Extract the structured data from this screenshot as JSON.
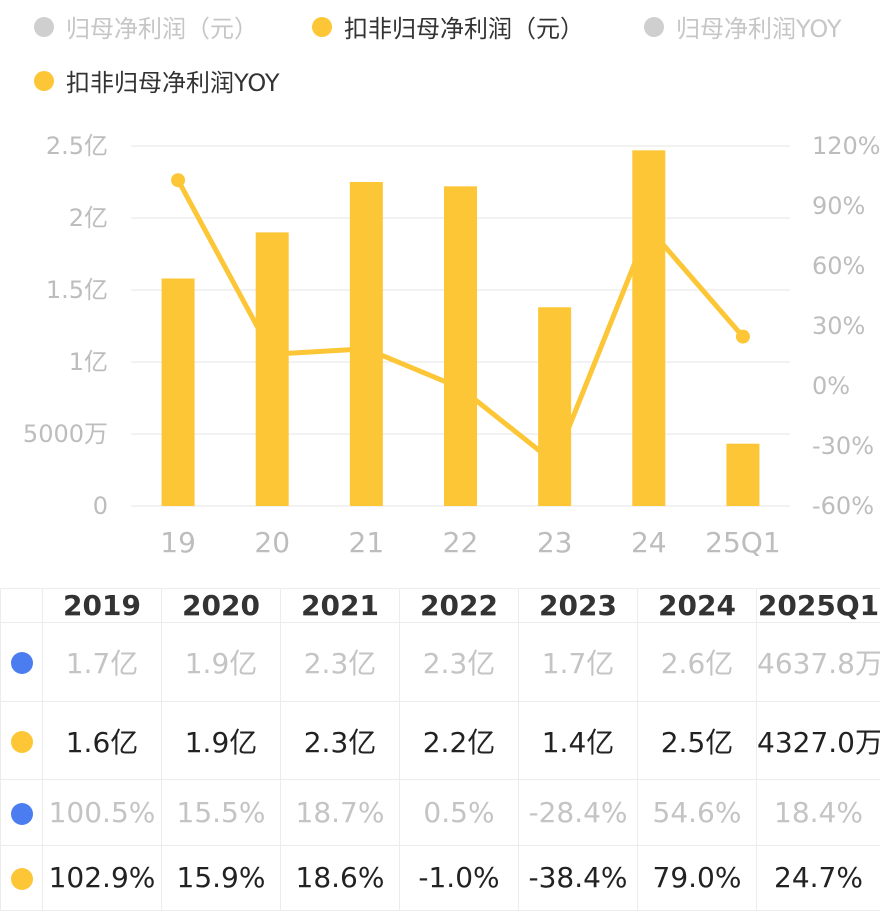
{
  "legend": [
    {
      "label": "归母净利润（元）",
      "active": false
    },
    {
      "label": "扣非归母净利润（元）",
      "active": true
    },
    {
      "label": "归母净利润YOY",
      "active": false
    },
    {
      "label": "扣非归母净利润YOY",
      "active": true
    }
  ],
  "chart_data": {
    "type": "bar",
    "categories": [
      "19",
      "20",
      "21",
      "22",
      "23",
      "24",
      "25Q1"
    ],
    "left_axis": {
      "ticks": [
        "0",
        "5000万",
        "1亿",
        "1.5亿",
        "2亿",
        "2.5亿"
      ],
      "range": [
        0,
        250000000
      ]
    },
    "right_axis": {
      "ticks": [
        "-60%",
        "-30%",
        "0%",
        "30%",
        "60%",
        "90%",
        "120%"
      ],
      "range": [
        -60,
        120
      ]
    },
    "series": [
      {
        "name": "扣非归母净利润（元）",
        "type": "bar",
        "axis": "left",
        "values": [
          158000000,
          190000000,
          225000000,
          222000000,
          138000000,
          247000000,
          43270000
        ]
      },
      {
        "name": "扣非归母净利润YOY",
        "type": "line",
        "axis": "right",
        "values": [
          102.9,
          15.9,
          18.6,
          -1.0,
          -38.4,
          79.0,
          24.7
        ]
      }
    ],
    "colors": {
      "bar": "#fcc637",
      "line": "#fcc637",
      "grid": "#eeeeee",
      "axis_text": "#bdbdbd"
    },
    "grid": true,
    "legend_position": "top-left"
  },
  "table": {
    "headers": [
      "",
      "2019",
      "2020",
      "2021",
      "2022",
      "2023",
      "2024",
      "2025Q1"
    ],
    "rows": [
      {
        "dot": "blue",
        "style": "muted",
        "cells": [
          "1.7亿",
          "1.9亿",
          "2.3亿",
          "2.3亿",
          "1.7亿",
          "2.6亿",
          "4637.8万"
        ]
      },
      {
        "dot": "yellow",
        "style": "strong",
        "cells": [
          "1.6亿",
          "1.9亿",
          "2.3亿",
          "2.2亿",
          "1.4亿",
          "2.5亿",
          "4327.0万"
        ]
      },
      {
        "dot": "blue",
        "style": "muted",
        "cells": [
          "100.5%",
          "15.5%",
          "18.7%",
          "0.5%",
          "-28.4%",
          "54.6%",
          "18.4%"
        ]
      },
      {
        "dot": "yellow",
        "style": "strong",
        "cells": [
          "102.9%",
          "15.9%",
          "18.6%",
          "-1.0%",
          "-38.4%",
          "79.0%",
          "24.7%"
        ]
      }
    ]
  }
}
